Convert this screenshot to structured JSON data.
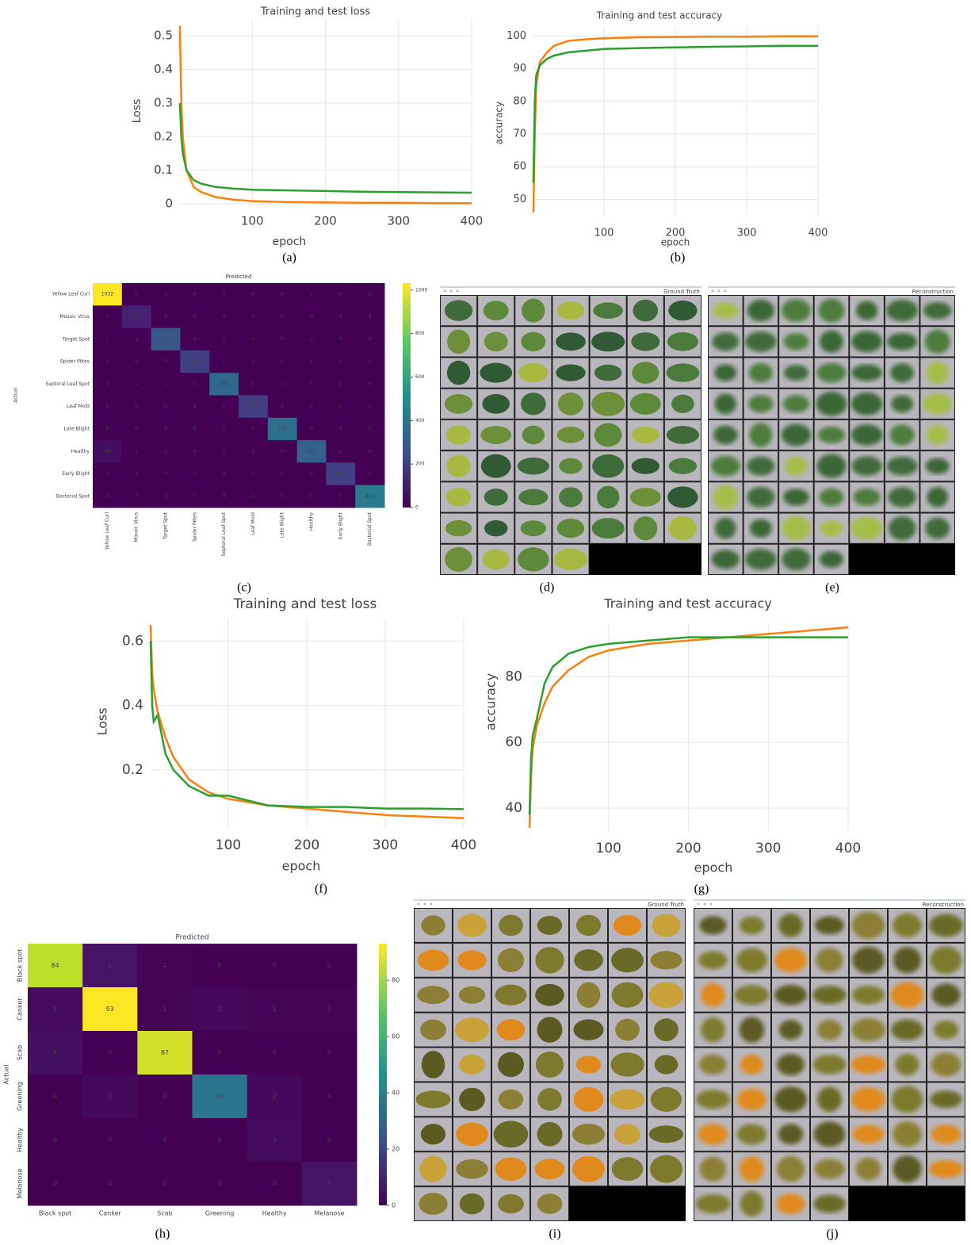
{
  "chart_data": [
    {
      "type": "line",
      "title": "Training and test loss",
      "x_label": "epoch",
      "y_label": "Loss",
      "caption": "(a)",
      "grid": true,
      "x": [
        1,
        3,
        5,
        10,
        20,
        30,
        50,
        75,
        100,
        150,
        200,
        250,
        300,
        350,
        400
      ],
      "series": [
        {
          "color": "#ff7f0e",
          "values": [
            0.53,
            0.3,
            0.2,
            0.1,
            0.05,
            0.035,
            0.02,
            0.012,
            0.008,
            0.005,
            0.004,
            0.003,
            0.003,
            0.002,
            0.002
          ]
        },
        {
          "color": "#2ca02c",
          "values": [
            0.3,
            0.2,
            0.15,
            0.1,
            0.07,
            0.06,
            0.05,
            0.045,
            0.042,
            0.04,
            0.038,
            0.036,
            0.035,
            0.034,
            0.033
          ]
        }
      ],
      "xlim": [
        0,
        400
      ],
      "xticks": [
        100,
        200,
        300,
        400
      ],
      "ylim": [
        0,
        0.55
      ],
      "yticks": [
        0,
        0.1,
        0.2,
        0.3,
        0.4,
        0.5
      ]
    },
    {
      "type": "line",
      "title": "Training and test accuracy",
      "x_label": "epoch",
      "y_label": "accuracy",
      "caption": "(b)",
      "grid": true,
      "x": [
        1,
        3,
        5,
        10,
        20,
        30,
        50,
        75,
        100,
        150,
        200,
        250,
        300,
        350,
        400
      ],
      "series": [
        {
          "color": "#ff7f0e",
          "values": [
            46,
            70,
            85,
            92,
            95,
            97,
            98.5,
            99,
            99.3,
            99.6,
            99.7,
            99.8,
            99.8,
            99.9,
            99.9
          ]
        },
        {
          "color": "#2ca02c",
          "values": [
            55,
            80,
            88,
            91,
            93,
            94,
            95,
            95.5,
            96,
            96.3,
            96.5,
            96.7,
            96.8,
            97,
            97
          ]
        }
      ],
      "xlim": [
        0,
        400
      ],
      "xticks": [
        100,
        200,
        300,
        400
      ],
      "ylim": [
        45,
        103
      ],
      "yticks": [
        50,
        60,
        70,
        80,
        90,
        100
      ]
    },
    {
      "type": "heatmap",
      "title": "Predicted",
      "y_label": "Actual",
      "caption": "(c)",
      "categories": [
        "Yellow Leaf Curl",
        "Mosaic Virus",
        "Target Spot",
        "Spider Mites",
        "Septoral Leaf Spot",
        "Leaf Mold",
        "Late Blight",
        "Healthy",
        "Early Blight",
        "Bacterial Spot"
      ],
      "values": [
        [
          1032,
          0,
          1,
          0,
          0,
          0,
          0,
          1,
          0,
          2
        ],
        [
          0,
          97,
          0,
          0,
          0,
          0,
          0,
          0,
          0,
          0
        ],
        [
          1,
          4,
          277,
          0,
          1,
          0,
          0,
          0,
          0,
          0
        ],
        [
          1,
          0,
          0,
          203,
          2,
          0,
          0,
          0,
          0,
          0
        ],
        [
          0,
          2,
          1,
          0,
          344,
          0,
          1,
          0,
          1,
          0
        ],
        [
          2,
          0,
          0,
          2,
          0,
          190,
          2,
          0,
          0,
          0
        ],
        [
          2,
          0,
          0,
          0,
          2,
          0,
          376,
          0,
          0,
          2
        ],
        [
          36,
          1,
          0,
          0,
          0,
          0,
          0,
          317,
          0,
          0
        ],
        [
          0,
          0,
          0,
          0,
          0,
          0,
          0,
          0,
          197,
          0
        ],
        [
          0,
          0,
          2,
          0,
          0,
          0,
          0,
          0,
          0,
          422
        ]
      ],
      "clim": [
        0,
        1032
      ],
      "cticks": [
        0,
        200,
        400,
        600,
        800,
        1000
      ]
    },
    {
      "type": "line",
      "title": "Training and test loss",
      "x_label": "epoch",
      "y_label": "Loss",
      "caption": "(f)",
      "grid": true,
      "x": [
        1,
        3,
        5,
        10,
        20,
        30,
        50,
        75,
        100,
        150,
        200,
        250,
        300,
        350,
        400
      ],
      "series": [
        {
          "color": "#ff7f0e",
          "values": [
            0.65,
            0.5,
            0.45,
            0.38,
            0.3,
            0.24,
            0.17,
            0.13,
            0.11,
            0.09,
            0.08,
            0.07,
            0.06,
            0.055,
            0.05
          ]
        },
        {
          "color": "#2ca02c",
          "values": [
            0.6,
            0.4,
            0.35,
            0.37,
            0.25,
            0.2,
            0.15,
            0.12,
            0.12,
            0.09,
            0.085,
            0.085,
            0.08,
            0.08,
            0.078
          ]
        }
      ],
      "xlim": [
        0,
        400
      ],
      "xticks": [
        100,
        200,
        300,
        400
      ],
      "ylim": [
        0.02,
        0.67
      ],
      "yticks": [
        0.2,
        0.4,
        0.6
      ]
    },
    {
      "type": "line",
      "title": "Training and test accuracy",
      "x_label": "epoch",
      "y_label": "accuracy",
      "caption": "(g)",
      "grid": true,
      "x": [
        1,
        3,
        5,
        10,
        20,
        30,
        50,
        75,
        100,
        150,
        200,
        250,
        300,
        350,
        400
      ],
      "series": [
        {
          "color": "#ff7f0e",
          "values": [
            34,
            50,
            58,
            65,
            72,
            77,
            82,
            86,
            88,
            90,
            91,
            92,
            93,
            94,
            95
          ]
        },
        {
          "color": "#2ca02c",
          "values": [
            38,
            55,
            62,
            67,
            78,
            83,
            87,
            89,
            90,
            91,
            92,
            92,
            92,
            92,
            92
          ]
        }
      ],
      "xlim": [
        0,
        400
      ],
      "xticks": [
        100,
        200,
        300,
        400
      ],
      "ylim": [
        33,
        96
      ],
      "yticks": [
        40,
        60,
        80
      ]
    },
    {
      "type": "heatmap",
      "title": "Predicted",
      "y_label": "Actual",
      "caption": "(h)",
      "categories": [
        "Black spot",
        "Canker",
        "Scab",
        "Greening",
        "Healthy",
        "Melanose"
      ],
      "values": [
        [
          84,
          5,
          1,
          0,
          0,
          0
        ],
        [
          3,
          93,
          1,
          2,
          1,
          1
        ],
        [
          4,
          0,
          87,
          0,
          0,
          0
        ],
        [
          0,
          2,
          0,
          36,
          2,
          0
        ],
        [
          0,
          0,
          0,
          0,
          3,
          0
        ],
        [
          0,
          0,
          0,
          0,
          0,
          5
        ]
      ],
      "clim": [
        0,
        93
      ],
      "cticks": [
        0,
        20,
        40,
        60,
        80
      ]
    }
  ],
  "image_panels": [
    {
      "title": "Ground Truth",
      "caption": "(d)"
    },
    {
      "title": "Reconstruction",
      "caption": "(e)"
    },
    {
      "title": "Ground Truth",
      "caption": "(i)"
    },
    {
      "title": "Reconstruction",
      "caption": "(j)"
    }
  ]
}
